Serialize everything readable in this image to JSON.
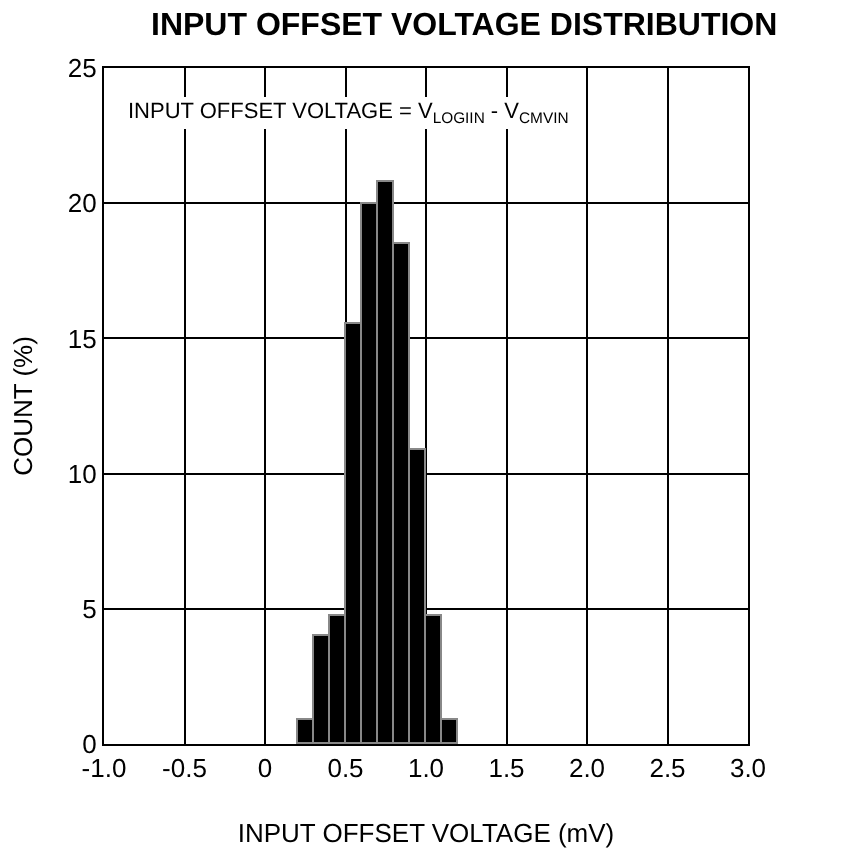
{
  "chart_data": {
    "type": "histogram",
    "title": "INPUT OFFSET VOLTAGE DISTRIBUTION",
    "xlabel": "INPUT OFFSET VOLTAGE (mV)",
    "ylabel": "COUNT (%)",
    "annotations": [
      "INPUT OFFSET VOLTAGE = V$_{LOGIIN}$ - V$_{CMVIN}$"
    ],
    "bins": [
      0.2,
      0.3,
      0.4,
      0.5,
      0.6,
      0.7,
      0.8,
      0.9,
      1.0,
      1.1,
      1.2
    ],
    "values": [
      0.9,
      4.0,
      4.7,
      15.5,
      20.0,
      20.8,
      18.5,
      10.9,
      4.7,
      0.9
    ],
    "color": "#000000",
    "xlim": [
      -1,
      3
    ],
    "xticks": [
      {
        "value": -1,
        "label": "-1.0"
      },
      {
        "value": -0.5,
        "label": "-0.5"
      },
      {
        "value": 0,
        "label": "0"
      },
      {
        "value": 0.5,
        "label": "0.5"
      },
      {
        "value": 1,
        "label": "1.0"
      },
      {
        "value": 1.5,
        "label": "1.5"
      },
      {
        "value": 2,
        "label": "2.0"
      },
      {
        "value": 2.5,
        "label": "2.5"
      },
      {
        "value": 3,
        "label": "3.0"
      }
    ],
    "ylim": [
      0,
      25
    ],
    "yticks": [
      0,
      5,
      10,
      15,
      20,
      25
    ],
    "grid": true
  }
}
